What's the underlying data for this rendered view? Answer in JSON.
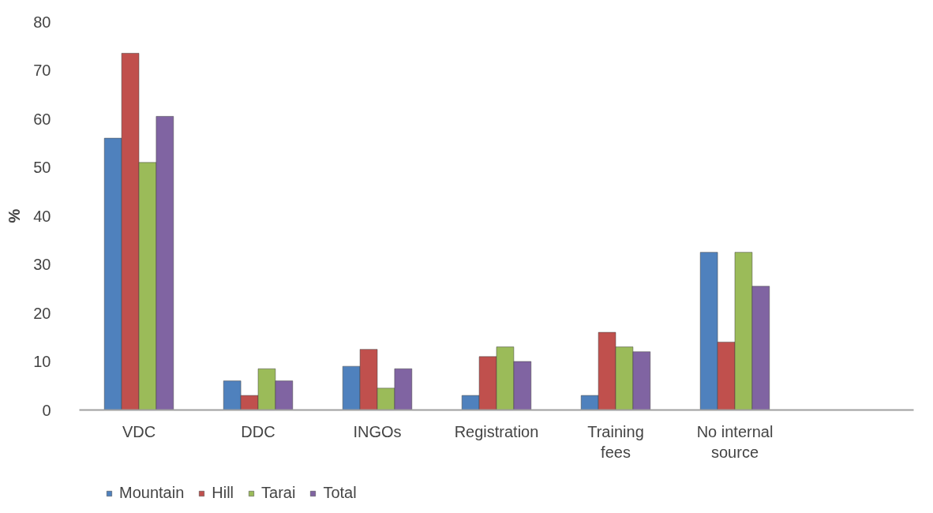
{
  "chart_data": {
    "type": "bar",
    "ylabel": "%",
    "categories": [
      "VDC",
      "DDC",
      "INGOs",
      "Registration",
      "Training fees",
      "No internal source",
      null
    ],
    "series": [
      {
        "name": "Mountain",
        "color": "#4f81bd",
        "values": [
          56,
          6,
          9,
          3,
          3,
          32.5,
          null
        ]
      },
      {
        "name": "Hill",
        "color": "#c0504d",
        "values": [
          73.5,
          3,
          12.5,
          11,
          16,
          14,
          null
        ]
      },
      {
        "name": "Tarai",
        "color": "#9bbb59",
        "values": [
          51,
          8.5,
          4.5,
          13,
          13,
          32.5,
          null
        ]
      },
      {
        "name": "Total",
        "color": "#8064a2",
        "values": [
          60.5,
          6,
          8.5,
          10,
          12,
          25.5,
          null
        ]
      }
    ],
    "ylim": [
      0,
      80
    ],
    "yticks": [
      0,
      10,
      20,
      30,
      40,
      50,
      60,
      70,
      80
    ],
    "grid": false,
    "legend": "bottom left"
  }
}
